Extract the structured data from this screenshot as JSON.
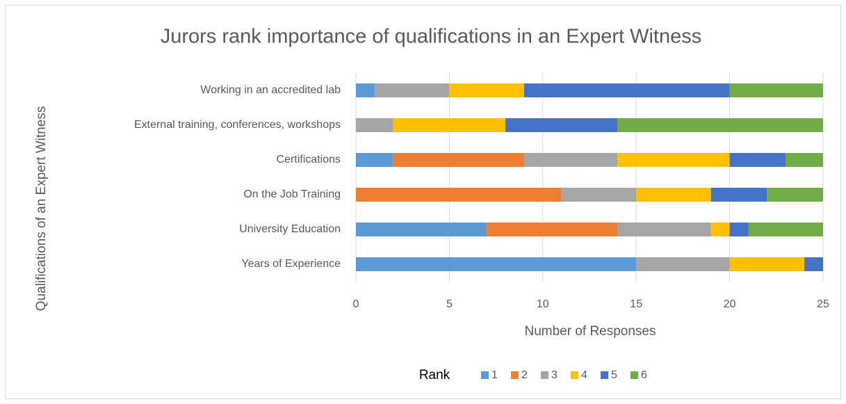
{
  "chart_data": {
    "type": "stacked_bar_horizontal",
    "title": "Jurors rank importance of qualifications in an Expert Witness",
    "x_label": "Number of Responses",
    "y_label": "Qualifications of an Expert Witness",
    "legend_title": "Rank",
    "categories": [
      "Working in an accredited lab",
      "External training, conferences, workshops",
      "Certifications",
      "On the Job Training",
      "University Education",
      "Years of Experience"
    ],
    "series": [
      {
        "name": "1",
        "color": "#5b9bd5",
        "values": [
          1,
          0,
          2,
          0,
          7,
          15
        ]
      },
      {
        "name": "2",
        "color": "#ed7d31",
        "values": [
          0,
          0,
          7,
          11,
          7,
          0
        ]
      },
      {
        "name": "3",
        "color": "#a5a5a5",
        "values": [
          4,
          2,
          5,
          4,
          5,
          5
        ]
      },
      {
        "name": "4",
        "color": "#ffc000",
        "values": [
          4,
          6,
          6,
          4,
          1,
          4
        ]
      },
      {
        "name": "5",
        "color": "#4472c4",
        "values": [
          11,
          6,
          3,
          3,
          1,
          1
        ]
      },
      {
        "name": "6",
        "color": "#70ad47",
        "values": [
          5,
          11,
          2,
          3,
          4,
          0
        ]
      }
    ],
    "xlim": [
      0,
      25
    ],
    "xticks": [
      0,
      5,
      10,
      15,
      20,
      25
    ],
    "grid": true
  }
}
